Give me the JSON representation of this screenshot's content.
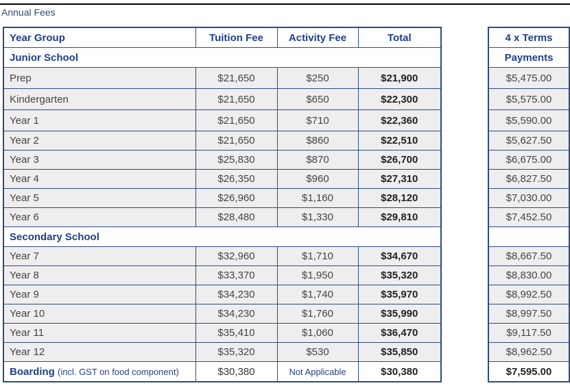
{
  "title": "Annual Fees",
  "headers": {
    "year_group": "Year Group",
    "tuition": "Tuition Fee",
    "activity": "Activity Fee",
    "total": "Total",
    "terms": "4 x Terms",
    "payments": "Payments"
  },
  "junior": {
    "label": "Junior School",
    "rows": [
      {
        "year": "Prep",
        "tuition": "$21,650",
        "activity": "$250",
        "total": "$21,900",
        "payment": "$5,475.00"
      },
      {
        "year": "Kindergarten",
        "tuition": "$21,650",
        "activity": "$650",
        "total": "$22,300",
        "payment": "$5,575.00"
      },
      {
        "year": "Year 1",
        "tuition": "$21,650",
        "activity": "$710",
        "total": "$22,360",
        "payment": "$5,590.00"
      },
      {
        "year": "Year 2",
        "tuition": "$21,650",
        "activity": "$860",
        "total": "$22,510",
        "payment": "$5,627.50"
      },
      {
        "year": "Year 3",
        "tuition": "$25,830",
        "activity": "$870",
        "total": "$26,700",
        "payment": "$6,675.00"
      },
      {
        "year": "Year 4",
        "tuition": "$26,350",
        "activity": "$960",
        "total": "$27,310",
        "payment": "$6,827.50"
      },
      {
        "year": "Year 5",
        "tuition": "$26,960",
        "activity": "$1,160",
        "total": "$28,120",
        "payment": "$7,030.00"
      },
      {
        "year": "Year 6",
        "tuition": "$28,480",
        "activity": "$1,330",
        "total": "$29,810",
        "payment": "$7,452.50"
      }
    ]
  },
  "secondary": {
    "label": "Secondary School",
    "rows": [
      {
        "year": "Year 7",
        "tuition": "$32,960",
        "activity": "$1,710",
        "total": "$34,670",
        "payment": "$8,667.50"
      },
      {
        "year": "Year 8",
        "tuition": "$33,370",
        "activity": "$1,950",
        "total": "$35,320",
        "payment": "$8,830.00"
      },
      {
        "year": "Year 9",
        "tuition": "$34,230",
        "activity": "$1,740",
        "total": "$35,970",
        "payment": "$8,992.50"
      },
      {
        "year": "Year 10",
        "tuition": "$34,230",
        "activity": "$1,760",
        "total": "$35,990",
        "payment": "$8,997.50"
      },
      {
        "year": "Year 11",
        "tuition": "$35,410",
        "activity": "$1,060",
        "total": "$36,470",
        "payment": "$9,117.50"
      },
      {
        "year": "Year 12",
        "tuition": "$35,320",
        "activity": "$530",
        "total": "$35,850",
        "payment": "$8,962.50"
      }
    ]
  },
  "boarding": {
    "label": "Boarding",
    "note": "(incl. GST on food component)",
    "tuition": "$30,380",
    "activity": "Not Applicable",
    "total": "$30,380",
    "payment": "$7,595.00"
  }
}
